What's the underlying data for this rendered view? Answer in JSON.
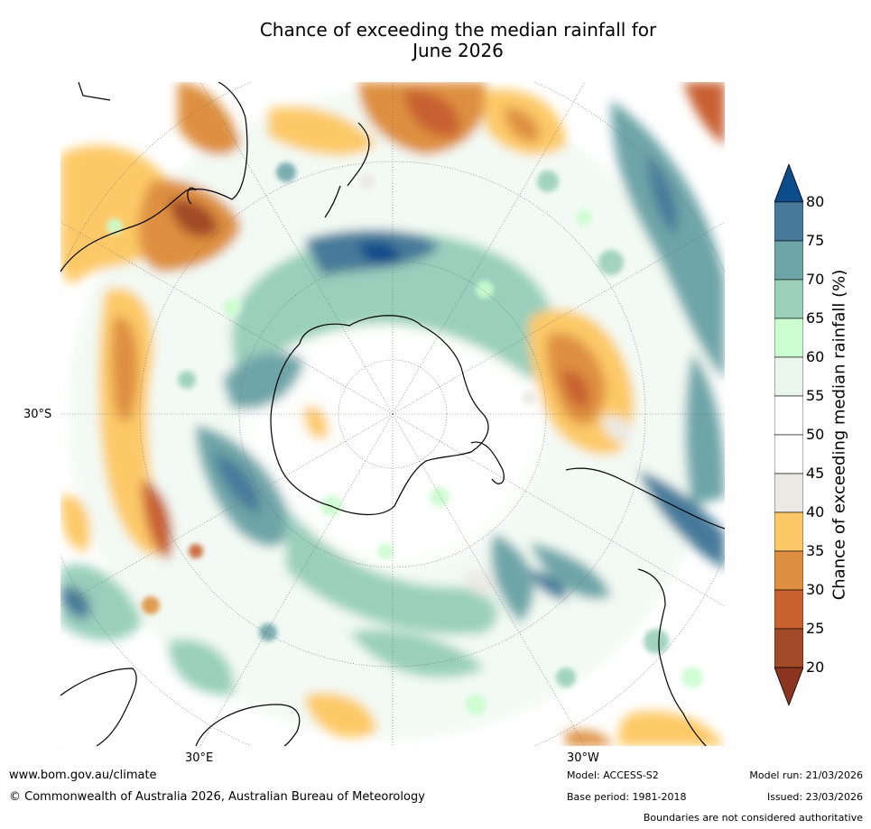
{
  "title_line1": "Chance of exceeding the median rainfall for",
  "title_line2": "June 2026",
  "map": {
    "lat_label": "30°S",
    "lon_labels": [
      "30°E",
      "30°W"
    ],
    "style": "polar stereographic, south pole centred"
  },
  "colorbar": {
    "title": "Chance of exceeding median rainfall (%)",
    "ticks": [
      "80",
      "75",
      "70",
      "65",
      "60",
      "55",
      "50",
      "45",
      "40",
      "35",
      "30",
      "25",
      "20"
    ],
    "colors_top_to_bottom": [
      "#0d4c8a",
      "#477a9a",
      "#6ea5a8",
      "#99cfbb",
      "#ccfdd0",
      "#eaf6ec",
      "#ffffff",
      "#ffffff",
      "#ece9e4",
      "#fdc968",
      "#de9040",
      "#c86030",
      "#a34a28",
      "#8b3520"
    ],
    "extend": "both"
  },
  "footer": {
    "url": "www.bom.gov.au/climate",
    "copyright": "© Commonwealth of Australia 2026, Australian Bureau of Meteorology",
    "model": "Model: ACCESS-S2",
    "base_period": "Base period: 1981-2018",
    "model_run": "Model run: 21/03/2026",
    "issued": "Issued: 23/03/2026",
    "disclaimer": "Boundaries are not considered authoritative"
  }
}
